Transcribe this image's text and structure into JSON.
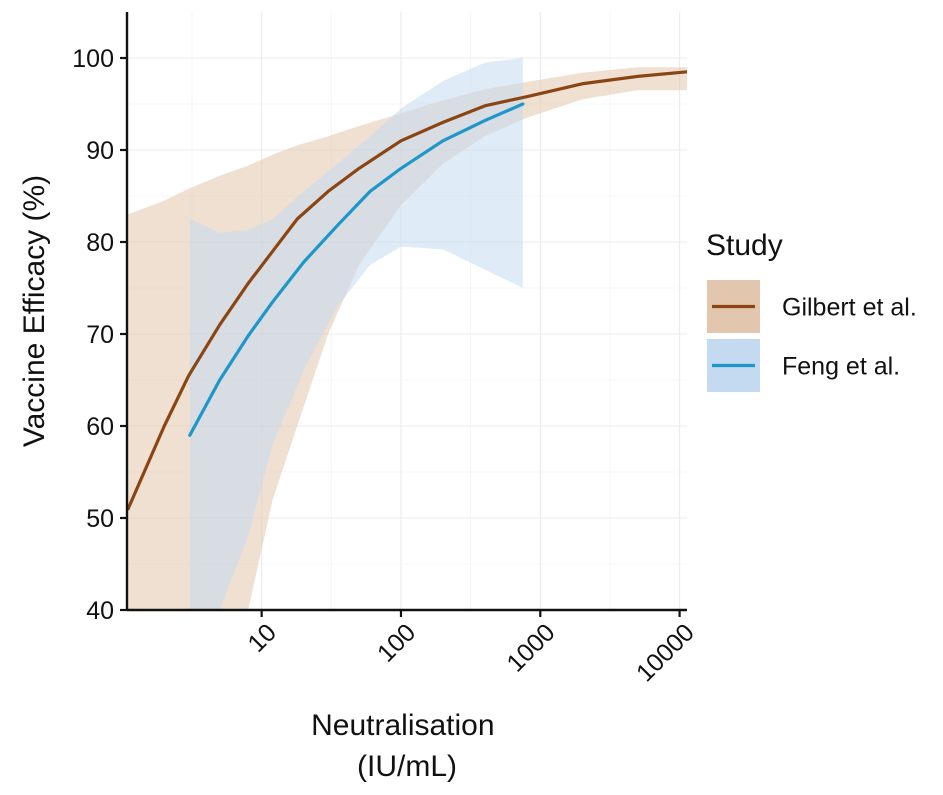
{
  "chart_data": {
    "type": "line",
    "title": "",
    "xlabel": [
      "Neutralisation",
      "(IU/mL)"
    ],
    "ylabel": "Vaccine Efficacy (%)",
    "x_scale": "log10",
    "xlim": [
      1.08,
      11300
    ],
    "ylim": [
      40,
      105
    ],
    "x_ticks": [
      10,
      100,
      1000,
      10000
    ],
    "x_tick_labels": [
      "10",
      "100",
      "1000",
      "10000"
    ],
    "y_ticks": [
      40,
      50,
      60,
      70,
      80,
      90,
      100
    ],
    "y_tick_labels": [
      "40",
      "50",
      "60",
      "70",
      "80",
      "90",
      "100"
    ],
    "grid": true,
    "legend": {
      "title": "Study",
      "position": "right"
    },
    "series": [
      {
        "name": "Gilbert et al.",
        "color": "#8b4513",
        "band_color": "#e2c6ad",
        "x": [
          1.1,
          2,
          3,
          5,
          8,
          12,
          18,
          30,
          50,
          100,
          200,
          400,
          800,
          2000,
          5000,
          11300
        ],
        "y": [
          51,
          60,
          65.5,
          71,
          75.5,
          79,
          82.5,
          85.5,
          88,
          91,
          93,
          94.8,
          95.8,
          97.2,
          98,
          98.5
        ],
        "lower": [
          40,
          40,
          40,
          40,
          40,
          52,
          60,
          70,
          77.5,
          84,
          88.5,
          91.5,
          93.5,
          95.5,
          96.5,
          96.5
        ],
        "upper": [
          83,
          84.5,
          85.8,
          87.2,
          88.3,
          89.5,
          90.5,
          91.5,
          92.6,
          94,
          95.4,
          96.6,
          97.4,
          98.4,
          99,
          99
        ]
      },
      {
        "name": "Feng et al.",
        "color": "#1f96c9",
        "band_color": "#c4daf0",
        "x": [
          3.05,
          5,
          8,
          12,
          20,
          35,
          60,
          100,
          200,
          400,
          750
        ],
        "y": [
          59,
          65,
          69.8,
          73.5,
          77.8,
          81.8,
          85.5,
          88,
          91,
          93.2,
          95
        ],
        "lower": [
          40,
          40,
          48,
          58,
          66,
          73,
          77.5,
          79.5,
          79.2,
          77,
          75
        ],
        "upper": [
          82.5,
          81,
          81.3,
          82.5,
          85.5,
          88.5,
          91.5,
          94.5,
          97.5,
          99.5,
          100
        ]
      }
    ]
  }
}
